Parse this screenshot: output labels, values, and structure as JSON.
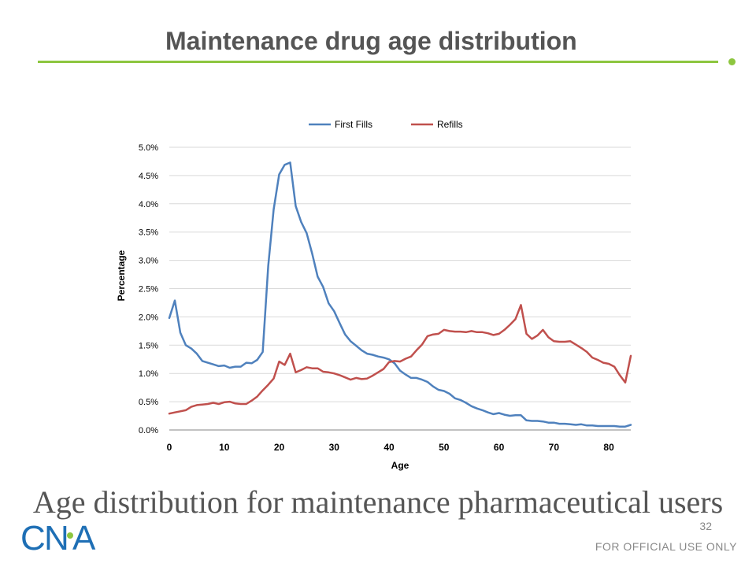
{
  "slide": {
    "title": "Maintenance drug age distribution",
    "caption": "Age distribution for maintenance pharmaceutical users",
    "page_number": "32",
    "footer": "FOR OFFICIAL USE ONLY",
    "logo_text": "CNA",
    "accent_color": "#8DC63F",
    "logo_color": "#1E6FB5"
  },
  "chart_data": {
    "type": "line",
    "title": "",
    "xlabel": "Age",
    "ylabel": "Percentage",
    "xlim": [
      0,
      84
    ],
    "ylim": [
      0,
      5
    ],
    "x_ticks": [
      0,
      10,
      20,
      30,
      40,
      50,
      60,
      70,
      80
    ],
    "x_tick_labels": [
      "0",
      "10",
      "20",
      "30",
      "40",
      "50",
      "60",
      "70",
      "80"
    ],
    "y_ticks": [
      0,
      0.5,
      1,
      1.5,
      2,
      2.5,
      3,
      3.5,
      4,
      4.5,
      5
    ],
    "y_tick_labels": [
      "0.0%",
      "0.5%",
      "1.0%",
      "1.5%",
      "2.0%",
      "2.5%",
      "3.0%",
      "3.5%",
      "4.0%",
      "4.5%",
      "5.0%"
    ],
    "grid": "horizontal",
    "legend_position": "top",
    "x": [
      0,
      1,
      2,
      3,
      4,
      5,
      6,
      7,
      8,
      9,
      10,
      11,
      12,
      13,
      14,
      15,
      16,
      17,
      18,
      19,
      20,
      21,
      22,
      23,
      24,
      25,
      26,
      27,
      28,
      29,
      30,
      31,
      32,
      33,
      34,
      35,
      36,
      37,
      38,
      39,
      40,
      41,
      42,
      43,
      44,
      45,
      46,
      47,
      48,
      49,
      50,
      51,
      52,
      53,
      54,
      55,
      56,
      57,
      58,
      59,
      60,
      61,
      62,
      63,
      64,
      65,
      66,
      67,
      68,
      69,
      70,
      71,
      72,
      73,
      74,
      75,
      76,
      77,
      78,
      79,
      80,
      81,
      82,
      83,
      84
    ],
    "series": [
      {
        "name": "First Fills",
        "color": "#4F81BD",
        "values": [
          1.98,
          2.29,
          1.72,
          1.5,
          1.44,
          1.35,
          1.22,
          1.19,
          1.16,
          1.13,
          1.14,
          1.1,
          1.12,
          1.12,
          1.19,
          1.18,
          1.24,
          1.38,
          2.9,
          3.9,
          4.52,
          4.69,
          4.73,
          3.96,
          3.68,
          3.48,
          3.12,
          2.71,
          2.53,
          2.24,
          2.1,
          1.89,
          1.69,
          1.57,
          1.49,
          1.41,
          1.35,
          1.33,
          1.3,
          1.28,
          1.25,
          1.18,
          1.05,
          0.98,
          0.92,
          0.92,
          0.89,
          0.85,
          0.77,
          0.71,
          0.69,
          0.64,
          0.56,
          0.53,
          0.48,
          0.42,
          0.38,
          0.35,
          0.31,
          0.28,
          0.3,
          0.27,
          0.25,
          0.26,
          0.26,
          0.17,
          0.16,
          0.16,
          0.15,
          0.13,
          0.13,
          0.11,
          0.11,
          0.1,
          0.09,
          0.1,
          0.08,
          0.08,
          0.07,
          0.07,
          0.07,
          0.07,
          0.06,
          0.06,
          0.09
        ]
      },
      {
        "name": "Refills",
        "color": "#C0504D",
        "values": [
          0.29,
          0.31,
          0.33,
          0.35,
          0.41,
          0.44,
          0.45,
          0.46,
          0.48,
          0.46,
          0.49,
          0.5,
          0.47,
          0.46,
          0.46,
          0.52,
          0.59,
          0.7,
          0.8,
          0.91,
          1.21,
          1.15,
          1.35,
          1.02,
          1.06,
          1.11,
          1.09,
          1.09,
          1.03,
          1.02,
          1.0,
          0.97,
          0.93,
          0.89,
          0.92,
          0.9,
          0.91,
          0.96,
          1.02,
          1.08,
          1.2,
          1.22,
          1.21,
          1.26,
          1.3,
          1.41,
          1.51,
          1.66,
          1.69,
          1.7,
          1.77,
          1.75,
          1.74,
          1.74,
          1.73,
          1.75,
          1.73,
          1.73,
          1.71,
          1.68,
          1.7,
          1.77,
          1.86,
          1.96,
          2.21,
          1.7,
          1.61,
          1.67,
          1.77,
          1.64,
          1.57,
          1.56,
          1.56,
          1.57,
          1.51,
          1.45,
          1.38,
          1.28,
          1.24,
          1.19,
          1.17,
          1.12,
          0.97,
          0.84,
          1.31
        ]
      }
    ]
  }
}
